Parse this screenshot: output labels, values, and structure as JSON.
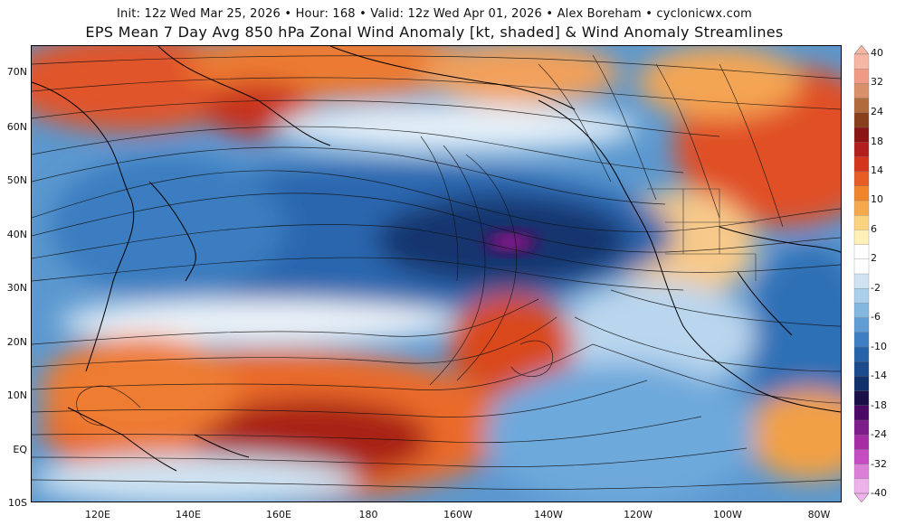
{
  "header": {
    "subtitle": "Init: 12z Wed Mar 25, 2026 • Hour: 168 • Valid: 12z Wed Apr 01, 2026 • Alex Boreham • cyclonicwx.com",
    "title": "EPS Mean 7 Day Avg 850 hPa Zonal Wind Anomaly [kt, shaded] & Wind Anomaly Streamlines"
  },
  "map": {
    "region": "North Pacific",
    "lat_range": [
      -10,
      75
    ],
    "lon_range_degE": [
      105,
      285
    ],
    "lat_labels": [
      "70N",
      "60N",
      "50N",
      "40N",
      "30N",
      "20N",
      "10N",
      "EQ",
      "10S"
    ],
    "lat_values": [
      70,
      60,
      50,
      40,
      30,
      20,
      10,
      0,
      -10
    ],
    "lon_labels": [
      "120E",
      "140E",
      "160E",
      "180",
      "160W",
      "140W",
      "120W",
      "100W",
      "80W"
    ],
    "lon_values": [
      120,
      140,
      160,
      180,
      200,
      220,
      240,
      260,
      280
    ]
  },
  "colorbar": {
    "units": "kt",
    "tick_labels": [
      "40",
      "32",
      "24",
      "18",
      "14",
      "10",
      "6",
      "2",
      "-2",
      "-6",
      "-10",
      "-14",
      "-18",
      "-24",
      "-32",
      "-40"
    ],
    "colors": [
      "#f6b6a4",
      "#f19b86",
      "#d9906b",
      "#b06a3b",
      "#8a3f1c",
      "#8b1515",
      "#b31f1c",
      "#d5351d",
      "#e85d24",
      "#f0852b",
      "#f6a94c",
      "#fbd27e",
      "#fff0b8",
      "#ffffff",
      "#ffffff",
      "#cfe3f2",
      "#a9cfea",
      "#84b7e0",
      "#5f9dd4",
      "#3d7fc2",
      "#2663a8",
      "#1a4a8c",
      "#10316b",
      "#1b0f4a",
      "#4c0a66",
      "#7e1c8c",
      "#a52ea6",
      "#c54cc2",
      "#dc7fd8",
      "#eeb2ea"
    ]
  }
}
